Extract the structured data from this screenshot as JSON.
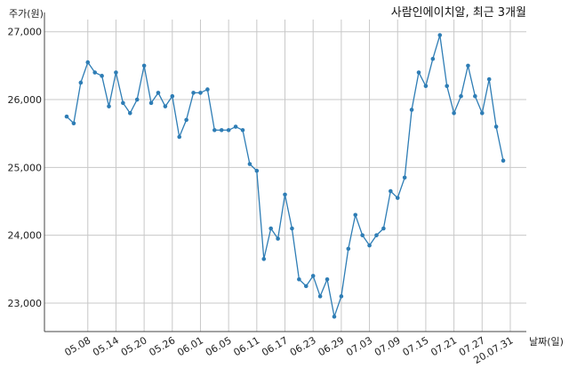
{
  "chart_data": {
    "type": "line",
    "title": "사람인에이치알, 최근 3개월",
    "ylabel": "주가(원)",
    "xlabel": "날짜(일)",
    "ylim": [
      22580,
      27180
    ],
    "yticks": [
      23000,
      24000,
      25000,
      26000,
      27000
    ],
    "ytick_labels": [
      "23,000",
      "24,000",
      "25,000",
      "26,000",
      "27,000"
    ],
    "xtick_labels": [
      "05.08",
      "05.14",
      "05.20",
      "05.26",
      "06.01",
      "06.05",
      "06.11",
      "06.17",
      "06.23",
      "06.29",
      "07.03",
      "07.09",
      "07.15",
      "07.21",
      "07.27",
      "20.07.31"
    ],
    "xtick_index": [
      3,
      7,
      11,
      15,
      19,
      23,
      27,
      31,
      35,
      39,
      43,
      47,
      51,
      55,
      59,
      63
    ],
    "grid": true,
    "color": "#2e7db5",
    "series": [
      {
        "name": "",
        "values": [
          25750,
          25650,
          26250,
          26550,
          26400,
          26350,
          25900,
          26400,
          25950,
          25800,
          26000,
          26500,
          25950,
          26100,
          25900,
          26050,
          25450,
          25700,
          26100,
          26100,
          26150,
          25550,
          25550,
          25550,
          25600,
          25550,
          25050,
          24950,
          23650,
          24100,
          23950,
          24600,
          24100,
          23350,
          23250,
          23400,
          23100,
          23350,
          22800,
          23100,
          23800,
          24300,
          24000,
          23850,
          24000,
          24100,
          24650,
          24550,
          24850,
          25850,
          26400,
          26200,
          26600,
          26950,
          26200,
          25800,
          26050,
          26500,
          26050,
          25800,
          26300,
          25600,
          25100
        ]
      }
    ]
  }
}
